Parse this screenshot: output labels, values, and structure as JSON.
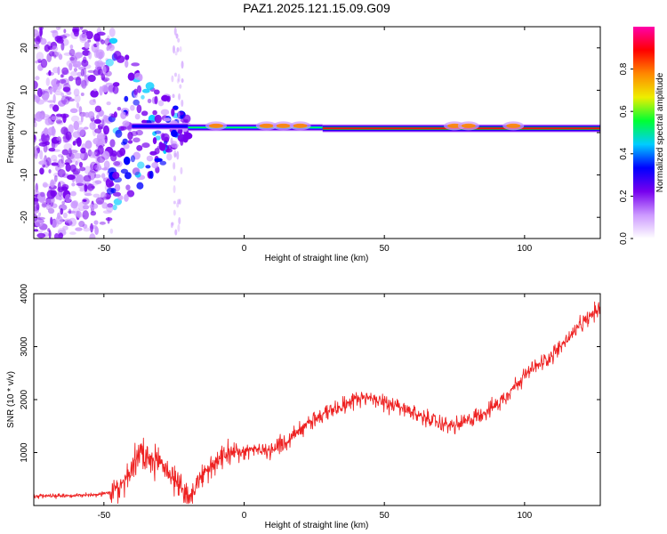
{
  "title": "PAZ1.2025.121.15.09.G09",
  "colors": {
    "snr_line": "#ee2222",
    "ridge": "#00bb55",
    "ridge_core": "#ee1111",
    "colormap": [
      "#ffffff",
      "#cc99ff",
      "#7700ee",
      "#0000ff",
      "#00ccff",
      "#00ff33",
      "#eeee00",
      "#ff8800",
      "#ff0000",
      "#ff00aa"
    ]
  },
  "chart_data": [
    {
      "id": "spectrogram",
      "type": "heatmap",
      "title": "",
      "xlabel": "Height of straight line (km)",
      "ylabel": "Frequency (Hz)",
      "xlim": [
        -75,
        127
      ],
      "ylim": [
        -25,
        25
      ],
      "xticks": [
        -50,
        0,
        50,
        100
      ],
      "yticks": [
        -20,
        -10,
        0,
        10,
        20
      ],
      "colorbar": {
        "label": "Normalized spectral amplitude",
        "range": [
          0,
          1
        ],
        "ticks": [
          "0.0",
          "0.2",
          "0.4",
          "0.6",
          "0.8"
        ],
        "tick_values": [
          0.0,
          0.2,
          0.4,
          0.6,
          0.8
        ]
      },
      "ridge": {
        "frequency_hz": 1,
        "segments": [
          {
            "x": [
              -40,
              -20
            ],
            "frequency_hz": 1.5,
            "amplitude": 0.35
          },
          {
            "x": [
              -20,
              28
            ],
            "frequency_hz": 1.2,
            "amplitude": 0.6
          },
          {
            "x": [
              28,
              127
            ],
            "frequency_hz": 1.0,
            "amplitude": 0.95
          }
        ]
      }
    },
    {
      "id": "snr",
      "type": "line",
      "title": "",
      "xlabel": "Height of straight line (km)",
      "ylabel": "SNR (10 * v/v)",
      "xlim": [
        -75,
        127
      ],
      "ylim": [
        0,
        4000
      ],
      "xticks": [
        -50,
        0,
        50,
        100
      ],
      "yticks": [
        1000,
        2000,
        3000,
        4000
      ],
      "series": [
        {
          "x": [
            -75,
            -60,
            -50,
            -45,
            -40,
            -37,
            -35,
            -30,
            -25,
            -20,
            -15,
            -10,
            -5,
            0,
            5,
            10,
            15,
            20,
            30,
            40,
            45,
            50,
            60,
            70,
            75,
            80,
            90,
            100,
            110,
            120,
            127
          ],
          "values": [
            180,
            190,
            220,
            300,
            700,
            1050,
            800,
            850,
            500,
            150,
            550,
            800,
            1000,
            1050,
            1050,
            1050,
            1200,
            1450,
            1800,
            2000,
            2050,
            1950,
            1750,
            1550,
            1500,
            1600,
            1900,
            2450,
            2850,
            3400,
            3750
          ]
        }
      ]
    }
  ]
}
